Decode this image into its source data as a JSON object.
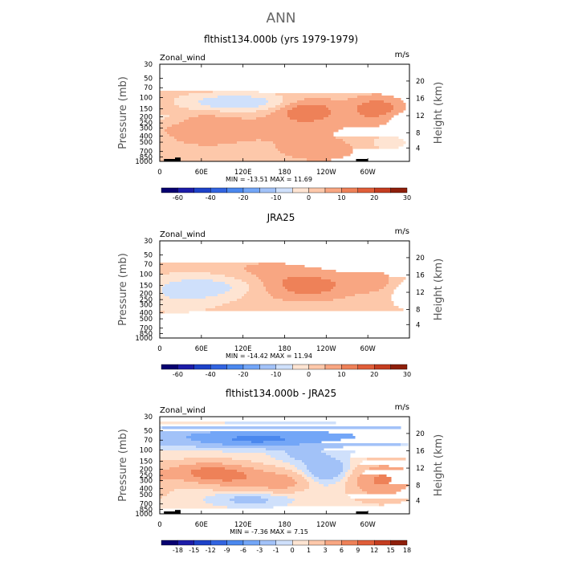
{
  "page": {
    "main_title": "ANN"
  },
  "chart_data": [
    {
      "type": "heatmap",
      "title": "flthist134.000b (yrs 1979-1979)",
      "variable": "Zonal_wind",
      "units": "m/s",
      "ylabel_left": "Pressure (mb)",
      "ylabel_right": "Height (km)",
      "x_ticks": [
        "0",
        "60E",
        "120E",
        "180",
        "120W",
        "60W"
      ],
      "x_tick_lons": [
        0,
        60,
        120,
        180,
        240,
        300
      ],
      "xlim": [
        0,
        360
      ],
      "y_ticks": [
        "30",
        "50",
        "70",
        "100",
        "150",
        "200",
        "250",
        "300",
        "400",
        "500",
        "700",
        "850",
        "1000"
      ],
      "y_tick_values": [
        30,
        50,
        70,
        100,
        150,
        200,
        250,
        300,
        400,
        500,
        700,
        850,
        1000
      ],
      "ylim": [
        30,
        1000
      ],
      "height_ticks": [
        "20",
        "16",
        "12",
        "8",
        "4"
      ],
      "height_tick_pressures": [
        55,
        103,
        192,
        357,
        616
      ],
      "min_max_text": "MIN = -13.51   MAX =  11.69",
      "stats": {
        "min": -13.51,
        "max": 11.69
      },
      "levels": [
        -70,
        -60,
        -50,
        -40,
        -30,
        -20,
        -15,
        -10,
        -5,
        0,
        5,
        10,
        15,
        20,
        25,
        30
      ],
      "colorbar_labels": [
        "-60",
        "-40",
        "-20",
        "-10",
        "0",
        "10",
        "20",
        "30"
      ],
      "colorbar_label_levels": [
        -60,
        -40,
        -20,
        -10,
        0,
        10,
        20,
        30
      ],
      "features": [
        {
          "lon": 110,
          "p": 120,
          "dlon": 55,
          "dlogp": 0.1,
          "amp": -13.5
        },
        {
          "lon": 0,
          "p": 200,
          "dlon": 25,
          "dlogp": 0.08,
          "amp": -6
        },
        {
          "lon": 330,
          "p": 500,
          "dlon": 20,
          "dlogp": 0.08,
          "amp": -7
        },
        {
          "lon": 212,
          "p": 160,
          "dlon": 30,
          "dlogp": 0.13,
          "amp": 11.7
        },
        {
          "lon": 315,
          "p": 150,
          "dlon": 28,
          "dlogp": 0.13,
          "amp": 11.5
        },
        {
          "lon": 60,
          "p": 300,
          "dlon": 35,
          "dlogp": 0.18,
          "amp": 4
        },
        {
          "lon": 160,
          "p": 300,
          "dlon": 120,
          "dlogp": 0.25,
          "amp": 3
        },
        {
          "lon": 230,
          "p": 700,
          "dlon": 40,
          "dlogp": 0.12,
          "amp": 4
        },
        {
          "lon": 180,
          "p": 30,
          "dlon": 400,
          "dlogp": 0.05,
          "amp": -7
        }
      ],
      "base_value": 2.5,
      "show_topography": true,
      "topography": [
        [
          6,
          22,
          1.0
        ],
        [
          22,
          30,
          1.6
        ],
        [
          283,
          300,
          1.0
        ]
      ]
    },
    {
      "type": "heatmap",
      "title": "JRA25",
      "variable": "Zonal_wind",
      "units": "m/s",
      "ylabel_left": "Pressure (mb)",
      "ylabel_right": "Height (km)",
      "x_ticks": [
        "0",
        "60E",
        "120E",
        "180",
        "120W",
        "60W"
      ],
      "x_tick_lons": [
        0,
        60,
        120,
        180,
        240,
        300
      ],
      "xlim": [
        0,
        360
      ],
      "y_ticks": [
        "30",
        "50",
        "70",
        "100",
        "150",
        "200",
        "250",
        "300",
        "400",
        "500",
        "700",
        "850",
        "1000"
      ],
      "y_tick_values": [
        30,
        50,
        70,
        100,
        150,
        200,
        250,
        300,
        400,
        500,
        700,
        850,
        1000
      ],
      "ylim": [
        30,
        1000
      ],
      "height_ticks": [
        "20",
        "16",
        "12",
        "8",
        "4"
      ],
      "height_tick_pressures": [
        55,
        103,
        192,
        357,
        616
      ],
      "min_max_text": "MIN = -14.42   MAX =  11.94",
      "stats": {
        "min": -14.42,
        "max": 11.94
      },
      "levels": [
        -70,
        -60,
        -50,
        -40,
        -30,
        -20,
        -15,
        -10,
        -5,
        0,
        5,
        10,
        15,
        20,
        25,
        30
      ],
      "colorbar_labels": [
        "-60",
        "-40",
        "-20",
        "-10",
        "0",
        "10",
        "20",
        "30"
      ],
      "colorbar_label_levels": [
        -60,
        -40,
        -20,
        -10,
        0,
        10,
        20,
        30
      ],
      "features": [
        {
          "lon": 65,
          "p": 160,
          "dlon": 55,
          "dlogp": 0.12,
          "amp": -10
        },
        {
          "lon": 30,
          "p": 250,
          "dlon": 35,
          "dlogp": 0.15,
          "amp": -4
        },
        {
          "lon": 210,
          "p": 150,
          "dlon": 55,
          "dlogp": 0.17,
          "amp": 11.9
        },
        {
          "lon": 310,
          "p": 130,
          "dlon": 22,
          "dlogp": 0.12,
          "amp": 7
        },
        {
          "lon": 150,
          "p": 80,
          "dlon": 40,
          "dlogp": 0.1,
          "amp": 4
        },
        {
          "lon": 60,
          "p": 600,
          "dlon": 40,
          "dlogp": 0.1,
          "amp": 3
        },
        {
          "lon": 180,
          "p": 30,
          "dlon": 400,
          "dlogp": 0.05,
          "amp": -8
        }
      ],
      "base_value": 1.2,
      "show_topography": false,
      "topography": []
    },
    {
      "type": "heatmap",
      "title": "flthist134.000b - JRA25",
      "variable": "Zonal_wind",
      "units": "m/s",
      "ylabel_left": "Pressure (mb)",
      "ylabel_right": "Height (km)",
      "x_ticks": [
        "0",
        "60E",
        "120E",
        "180",
        "120W",
        "60W"
      ],
      "x_tick_lons": [
        0,
        60,
        120,
        180,
        240,
        300
      ],
      "xlim": [
        0,
        360
      ],
      "y_ticks": [
        "30",
        "50",
        "70",
        "100",
        "150",
        "200",
        "250",
        "300",
        "400",
        "500",
        "700",
        "850",
        "1000"
      ],
      "y_tick_values": [
        30,
        50,
        70,
        100,
        150,
        200,
        250,
        300,
        400,
        500,
        700,
        850,
        1000
      ],
      "ylim": [
        30,
        1000
      ],
      "height_ticks": [
        "20",
        "16",
        "12",
        "8",
        "4"
      ],
      "height_tick_pressures": [
        55,
        103,
        192,
        357,
        616
      ],
      "min_max_text": "MIN =  -7.36   MAX =   7.15",
      "stats": {
        "min": -7.36,
        "max": 7.15
      },
      "levels": [
        -21,
        -18,
        -15,
        -12,
        -9,
        -6,
        -3,
        -1,
        0,
        1,
        3,
        6,
        9,
        12,
        15,
        18
      ],
      "colorbar_labels": [
        "-18",
        "-15",
        "-12",
        "-9",
        "-6",
        "-3",
        "-1",
        "0",
        "1",
        "3",
        "6",
        "9",
        "12",
        "15",
        "18"
      ],
      "colorbar_label_levels": [
        -18,
        -15,
        -12,
        -9,
        -6,
        -3,
        -1,
        0,
        1,
        3,
        6,
        9,
        12,
        15,
        18
      ],
      "features": [
        {
          "lon": 175,
          "p": 60,
          "dlon": 200,
          "dlogp": 0.12,
          "amp": -4
        },
        {
          "lon": 140,
          "p": 70,
          "dlon": 50,
          "dlogp": 0.07,
          "amp": -4
        },
        {
          "lon": 70,
          "p": 220,
          "dlon": 40,
          "dlogp": 0.1,
          "amp": 6
        },
        {
          "lon": 110,
          "p": 280,
          "dlon": 40,
          "dlogp": 0.1,
          "amp": 4
        },
        {
          "lon": 175,
          "p": 320,
          "dlon": 25,
          "dlogp": 0.1,
          "amp": 3.5
        },
        {
          "lon": 240,
          "p": 200,
          "dlon": 25,
          "dlogp": 0.15,
          "amp": -3
        },
        {
          "lon": 320,
          "p": 300,
          "dlon": 28,
          "dlogp": 0.17,
          "amp": 6
        },
        {
          "lon": 130,
          "p": 600,
          "dlon": 40,
          "dlogp": 0.08,
          "amp": -2
        },
        {
          "lon": 200,
          "p": 120,
          "dlon": 25,
          "dlogp": 0.08,
          "amp": -1.5
        },
        {
          "lon": 180,
          "p": 30,
          "dlon": 400,
          "dlogp": 0.06,
          "amp": 1.2
        }
      ],
      "base_value": 0.5,
      "show_topography": true,
      "topography": [
        [
          6,
          22,
          1.0
        ],
        [
          22,
          30,
          1.6
        ],
        [
          283,
          300,
          1.0
        ]
      ]
    }
  ]
}
